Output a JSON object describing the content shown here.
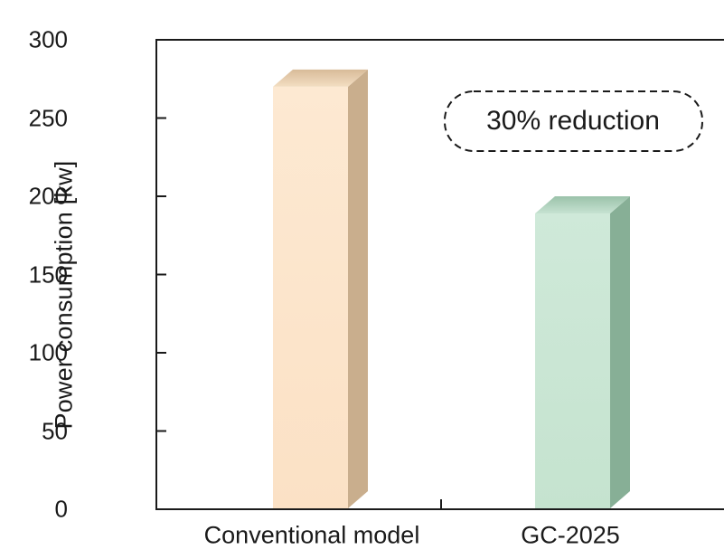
{
  "chart_data": {
    "type": "bar",
    "title": "",
    "categories": [
      "Conventional model",
      "GC-2025"
    ],
    "values": [
      270,
      189
    ],
    "xlabel": "",
    "ylabel": "Power consumption [kw]",
    "ylim": [
      0,
      300
    ],
    "yticks": [
      0,
      50,
      100,
      150,
      200,
      250,
      300
    ],
    "grid": false,
    "legend_position": "none",
    "bar_style": "3d-box",
    "annotation": "30% reduction",
    "annotation_style": "dashed-rounded-bubble",
    "series_colors": [
      {
        "name": "Conventional model",
        "front": "#FBE1C5",
        "front_light": "#FDE9D2",
        "side": "#C9AE8D",
        "top_back": "#D8BB99",
        "top_front": "#F3DEC2"
      },
      {
        "name": "GC-2025",
        "front": "#C5E3CF",
        "front_light": "#CFE9D9",
        "side": "#87AF96",
        "top_back": "#9BC2AA",
        "top_front": "#C6E2D1"
      }
    ],
    "frame_color": "#1a1a1a",
    "text_color": "#1a1a1a",
    "background_color": "#ffffff"
  }
}
